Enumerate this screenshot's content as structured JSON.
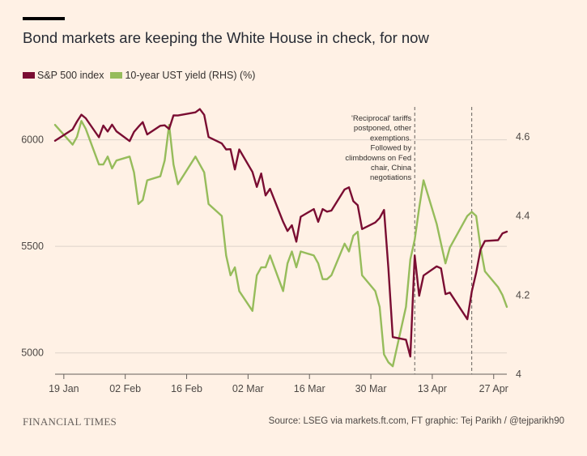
{
  "chart_data": {
    "type": "line",
    "title": "Bond markets are keeping the White House in check, for now",
    "x_ticks": [
      "19 Jan",
      "02 Feb",
      "16 Feb",
      "02 Mar",
      "16 Mar",
      "30 Mar",
      "13 Apr",
      "27 Apr"
    ],
    "x_range": [
      "2025-01-17",
      "2025-04-30"
    ],
    "left_axis": {
      "ticks": [
        5000,
        5500,
        6000
      ],
      "range": [
        4900,
        6200
      ]
    },
    "right_axis": {
      "ticks": [
        4,
        4.2,
        4.4,
        4.6
      ],
      "range": [
        4.0,
        4.7
      ]
    },
    "gridlines": true,
    "legend_position": "top-left",
    "series": [
      {
        "name": "S&P 500 index",
        "axis": "left",
        "color": "#7A0D32",
        "points": [
          [
            "2025-01-17",
            5996
          ],
          [
            "2025-01-21",
            6049
          ],
          [
            "2025-01-22",
            6086
          ],
          [
            "2025-01-23",
            6118
          ],
          [
            "2025-01-24",
            6101
          ],
          [
            "2025-01-27",
            6012
          ],
          [
            "2025-01-28",
            6067
          ],
          [
            "2025-01-29",
            6039
          ],
          [
            "2025-01-30",
            6071
          ],
          [
            "2025-01-31",
            6040
          ],
          [
            "2025-02-03",
            5994
          ],
          [
            "2025-02-04",
            6037
          ],
          [
            "2025-02-05",
            6061
          ],
          [
            "2025-02-06",
            6083
          ],
          [
            "2025-02-07",
            6025
          ],
          [
            "2025-02-10",
            6066
          ],
          [
            "2025-02-11",
            6068
          ],
          [
            "2025-02-12",
            6051
          ],
          [
            "2025-02-13",
            6115
          ],
          [
            "2025-02-14",
            6114
          ],
          [
            "2025-02-18",
            6129
          ],
          [
            "2025-02-19",
            6144
          ],
          [
            "2025-02-20",
            6117
          ],
          [
            "2025-02-21",
            6013
          ],
          [
            "2025-02-24",
            5983
          ],
          [
            "2025-02-25",
            5955
          ],
          [
            "2025-02-26",
            5956
          ],
          [
            "2025-02-27",
            5861
          ],
          [
            "2025-02-28",
            5955
          ],
          [
            "2025-03-03",
            5849
          ],
          [
            "2025-03-04",
            5779
          ],
          [
            "2025-03-05",
            5842
          ],
          [
            "2025-03-06",
            5739
          ],
          [
            "2025-03-07",
            5770
          ],
          [
            "2025-03-10",
            5615
          ],
          [
            "2025-03-11",
            5572
          ],
          [
            "2025-03-12",
            5599
          ],
          [
            "2025-03-13",
            5522
          ],
          [
            "2025-03-14",
            5639
          ],
          [
            "2025-03-17",
            5675
          ],
          [
            "2025-03-18",
            5615
          ],
          [
            "2025-03-19",
            5675
          ],
          [
            "2025-03-20",
            5663
          ],
          [
            "2025-03-21",
            5668
          ],
          [
            "2025-03-24",
            5767
          ],
          [
            "2025-03-25",
            5777
          ],
          [
            "2025-03-26",
            5712
          ],
          [
            "2025-03-27",
            5693
          ],
          [
            "2025-03-28",
            5581
          ],
          [
            "2025-03-31",
            5612
          ],
          [
            "2025-04-01",
            5633
          ],
          [
            "2025-04-02",
            5671
          ],
          [
            "2025-04-03",
            5397
          ],
          [
            "2025-04-04",
            5074
          ],
          [
            "2025-04-07",
            5062
          ],
          [
            "2025-04-08",
            4983
          ],
          [
            "2025-04-09",
            5457
          ],
          [
            "2025-04-10",
            5268
          ],
          [
            "2025-04-11",
            5363
          ],
          [
            "2025-04-14",
            5406
          ],
          [
            "2025-04-15",
            5397
          ],
          [
            "2025-04-16",
            5276
          ],
          [
            "2025-04-17",
            5283
          ],
          [
            "2025-04-21",
            5158
          ],
          [
            "2025-04-22",
            5288
          ],
          [
            "2025-04-23",
            5376
          ],
          [
            "2025-04-24",
            5485
          ],
          [
            "2025-04-25",
            5525
          ],
          [
            "2025-04-28",
            5529
          ],
          [
            "2025-04-29",
            5561
          ],
          [
            "2025-04-30",
            5569
          ]
        ]
      },
      {
        "name": "10-year UST yield (RHS) (%)",
        "axis": "right",
        "color": "#96BC5B",
        "points": [
          [
            "2025-01-17",
            4.63
          ],
          [
            "2025-01-21",
            4.58
          ],
          [
            "2025-01-22",
            4.6
          ],
          [
            "2025-01-23",
            4.64
          ],
          [
            "2025-01-24",
            4.62
          ],
          [
            "2025-01-27",
            4.53
          ],
          [
            "2025-01-28",
            4.53
          ],
          [
            "2025-01-29",
            4.55
          ],
          [
            "2025-01-30",
            4.52
          ],
          [
            "2025-01-31",
            4.54
          ],
          [
            "2025-02-03",
            4.55
          ],
          [
            "2025-02-04",
            4.51
          ],
          [
            "2025-02-05",
            4.43
          ],
          [
            "2025-02-06",
            4.44
          ],
          [
            "2025-02-07",
            4.49
          ],
          [
            "2025-02-10",
            4.5
          ],
          [
            "2025-02-11",
            4.54
          ],
          [
            "2025-02-12",
            4.63
          ],
          [
            "2025-02-13",
            4.53
          ],
          [
            "2025-02-14",
            4.48
          ],
          [
            "2025-02-18",
            4.55
          ],
          [
            "2025-02-19",
            4.53
          ],
          [
            "2025-02-20",
            4.51
          ],
          [
            "2025-02-21",
            4.43
          ],
          [
            "2025-02-24",
            4.4
          ],
          [
            "2025-02-25",
            4.3
          ],
          [
            "2025-02-26",
            4.25
          ],
          [
            "2025-02-27",
            4.27
          ],
          [
            "2025-02-28",
            4.21
          ],
          [
            "2025-03-03",
            4.16
          ],
          [
            "2025-03-04",
            4.25
          ],
          [
            "2025-03-05",
            4.27
          ],
          [
            "2025-03-06",
            4.27
          ],
          [
            "2025-03-07",
            4.3
          ],
          [
            "2025-03-10",
            4.21
          ],
          [
            "2025-03-11",
            4.28
          ],
          [
            "2025-03-12",
            4.31
          ],
          [
            "2025-03-13",
            4.27
          ],
          [
            "2025-03-14",
            4.31
          ],
          [
            "2025-03-17",
            4.3
          ],
          [
            "2025-03-18",
            4.28
          ],
          [
            "2025-03-19",
            4.24
          ],
          [
            "2025-03-20",
            4.24
          ],
          [
            "2025-03-21",
            4.25
          ],
          [
            "2025-03-24",
            4.33
          ],
          [
            "2025-03-25",
            4.31
          ],
          [
            "2025-03-26",
            4.35
          ],
          [
            "2025-03-27",
            4.36
          ],
          [
            "2025-03-28",
            4.25
          ],
          [
            "2025-03-31",
            4.21
          ],
          [
            "2025-04-01",
            4.17
          ],
          [
            "2025-04-02",
            4.05
          ],
          [
            "2025-04-03",
            4.03
          ],
          [
            "2025-04-04",
            4.02
          ],
          [
            "2025-04-07",
            4.17
          ],
          [
            "2025-04-08",
            4.29
          ],
          [
            "2025-04-09",
            4.34
          ],
          [
            "2025-04-10",
            4.42
          ],
          [
            "2025-04-11",
            4.49
          ],
          [
            "2025-04-14",
            4.38
          ],
          [
            "2025-04-15",
            4.33
          ],
          [
            "2025-04-16",
            4.28
          ],
          [
            "2025-04-17",
            4.32
          ],
          [
            "2025-04-21",
            4.4
          ],
          [
            "2025-04-22",
            4.41
          ],
          [
            "2025-04-23",
            4.4
          ],
          [
            "2025-04-24",
            4.32
          ],
          [
            "2025-04-25",
            4.26
          ],
          [
            "2025-04-28",
            4.22
          ],
          [
            "2025-04-29",
            4.2
          ],
          [
            "2025-04-30",
            4.17
          ]
        ]
      }
    ],
    "annotation": {
      "lines": [
        "'Reciprocal' tariffs",
        "postponed, other",
        "exemptions.",
        "Followed by",
        "climbdowns on Fed",
        "chair, China",
        "negotiations"
      ],
      "marker_dates": [
        "2025-04-09",
        "2025-04-22"
      ]
    }
  },
  "footer": {
    "brand": "FINANCIAL TIMES",
    "source": "Source: LSEG via markets.ft.com, FT graphic: Tej Parikh / @tejparikh90"
  }
}
